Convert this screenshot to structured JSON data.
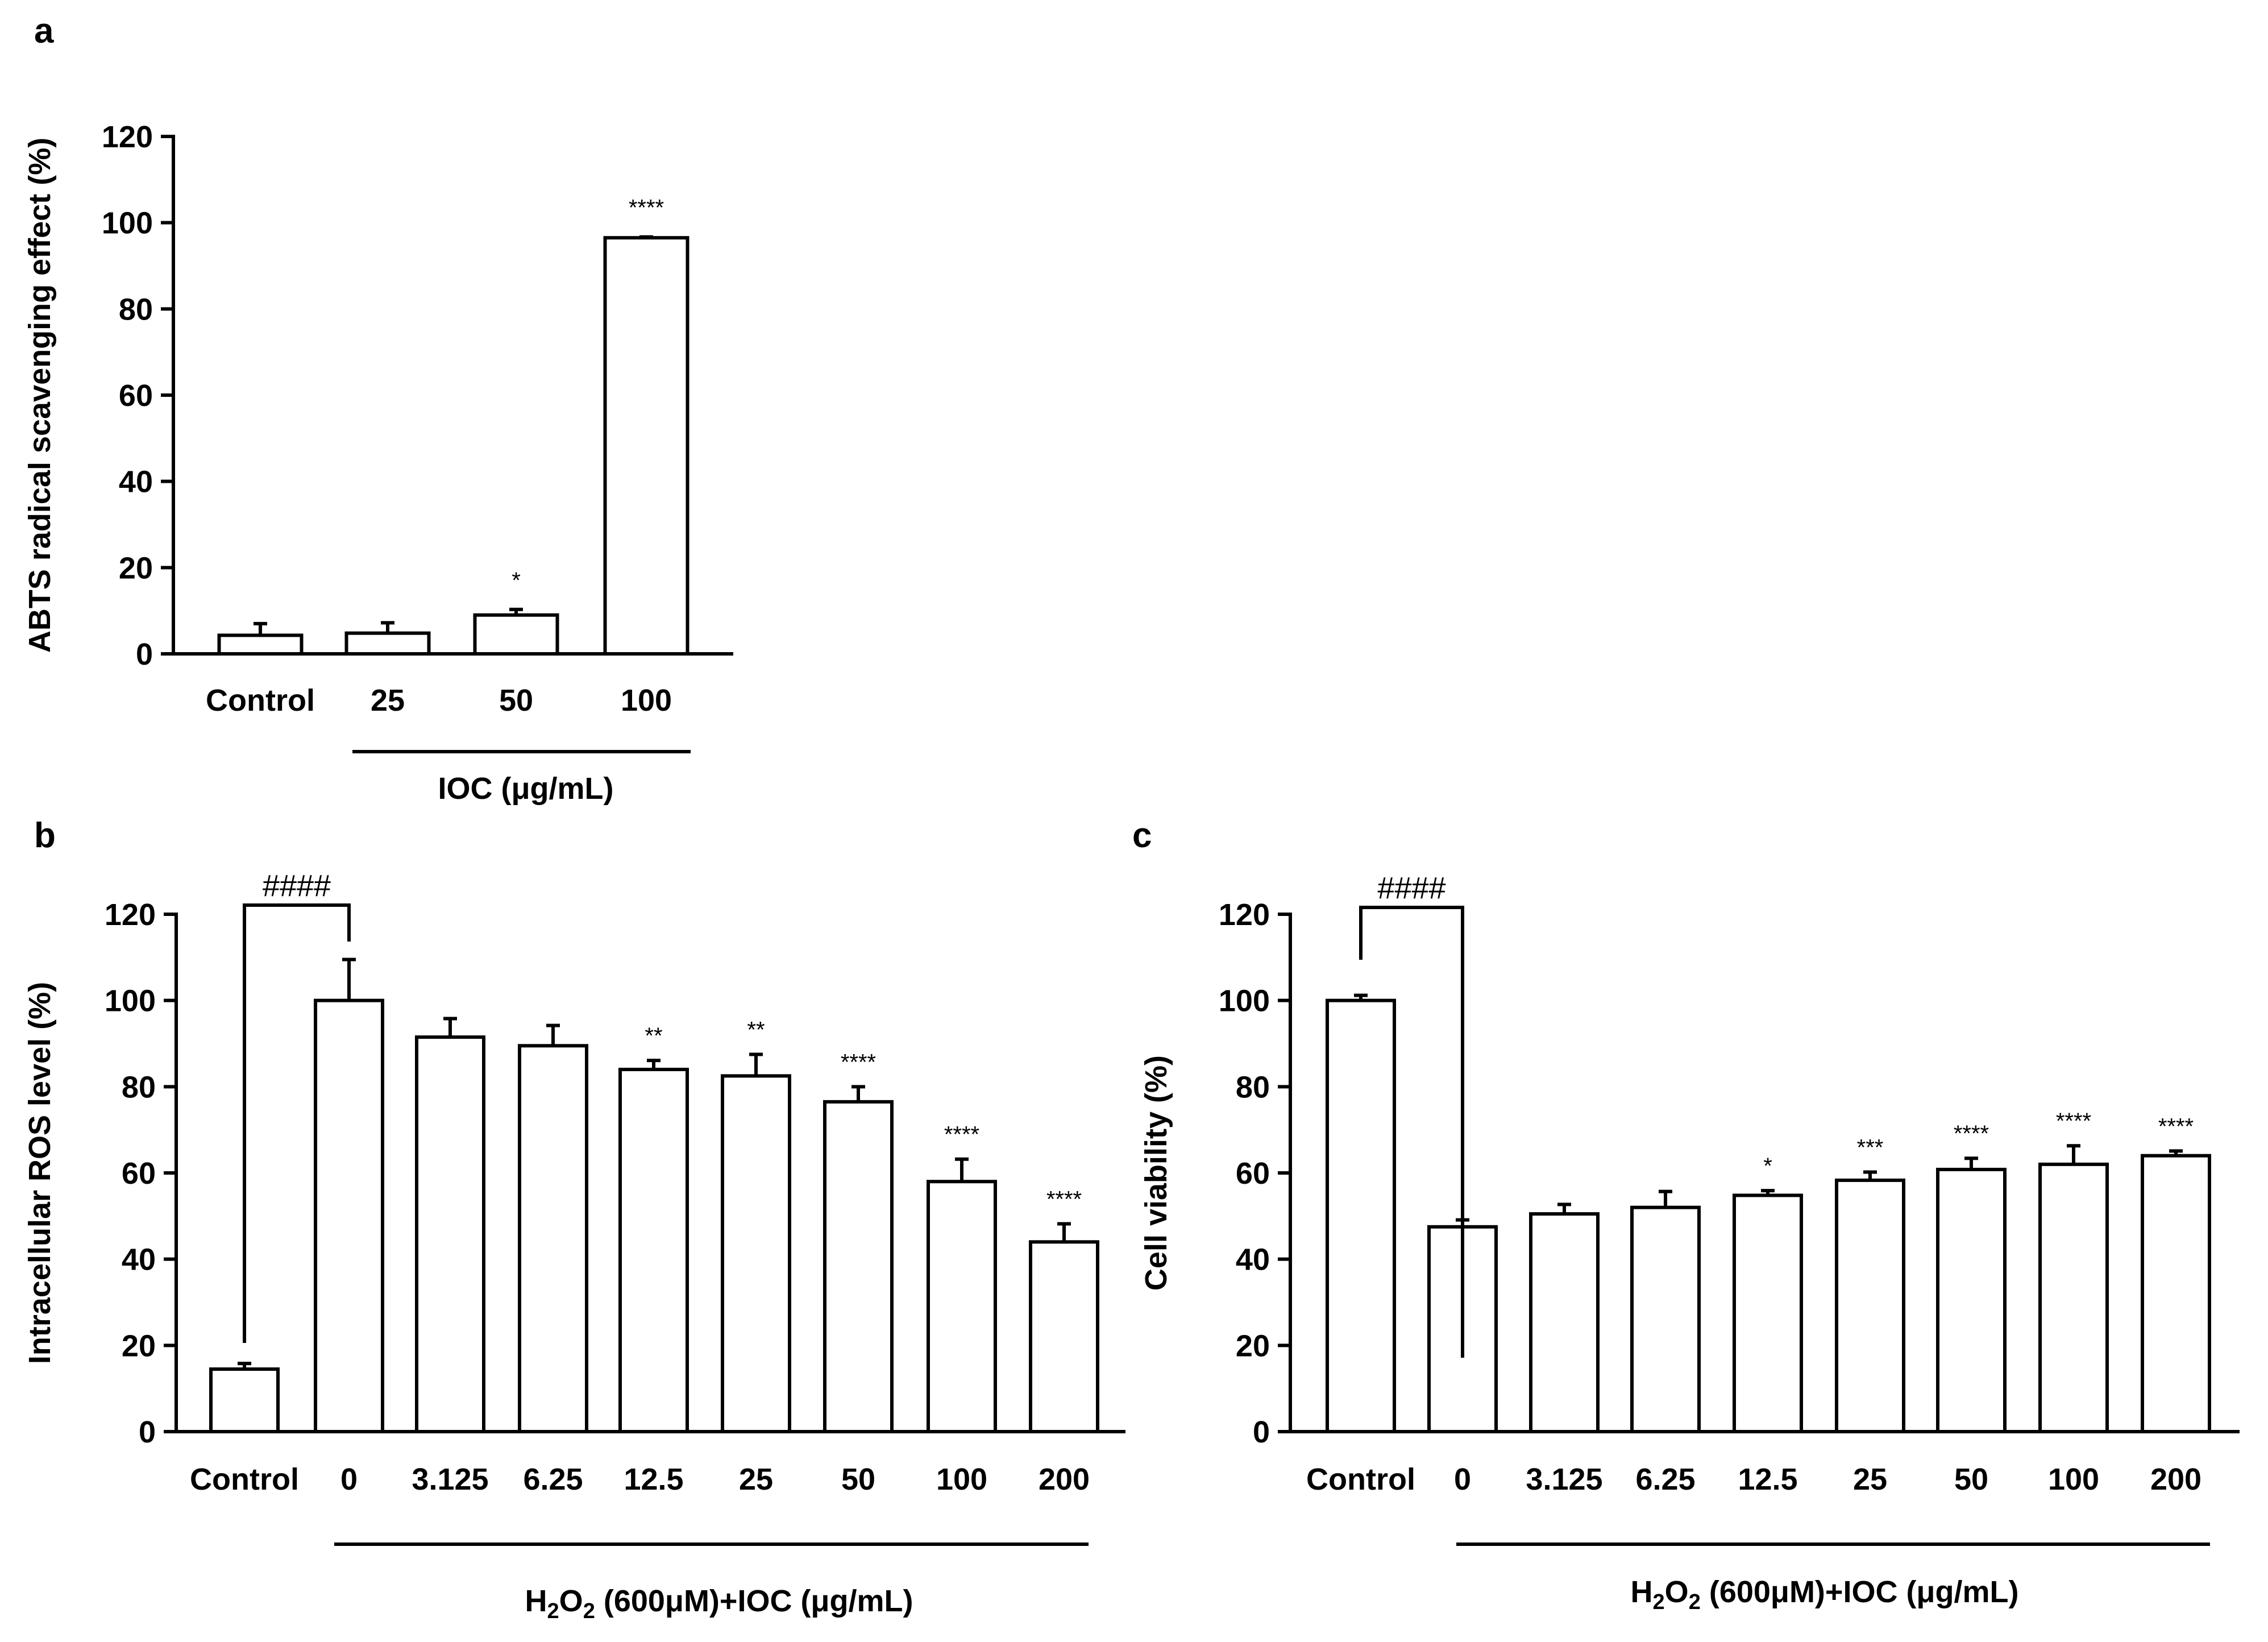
{
  "colors": {
    "axis": "#000000",
    "bar_fill": "#ffffff",
    "bar_stroke": "#000000",
    "background": "#ffffff"
  },
  "chart_data": [
    {
      "id": "a",
      "panel_label": "a",
      "type": "bar",
      "title": "",
      "ylabel": "ABTS radical scavenging effect (%)",
      "ylim": [
        0,
        120
      ],
      "yticks": [
        "0",
        "20",
        "40",
        "60",
        "80",
        "100",
        "120"
      ],
      "categories": [
        "Control",
        "25",
        "50",
        "100"
      ],
      "values": [
        4.3,
        4.8,
        9.0,
        96.5
      ],
      "errors": [
        2.7,
        2.4,
        1.3,
        0.2
      ],
      "significance": [
        "",
        "",
        "*",
        "****"
      ],
      "group_label": "IOC (μg/mL)",
      "grid": false
    },
    {
      "id": "b",
      "panel_label": "b",
      "type": "bar",
      "title": "",
      "ylabel": "Intracellular ROS level (%)",
      "ylim": [
        0,
        120
      ],
      "yticks": [
        "0",
        "20",
        "40",
        "60",
        "80",
        "100",
        "120"
      ],
      "categories": [
        "Control",
        "0",
        "3.125",
        "6.25",
        "12.5",
        "25",
        "50",
        "100",
        "200"
      ],
      "values": [
        14.5,
        100.0,
        91.5,
        89.5,
        84.0,
        82.5,
        76.5,
        58.0,
        44.0
      ],
      "errors": [
        1.3,
        9.5,
        4.3,
        4.7,
        2.1,
        5.0,
        3.5,
        5.2,
        4.2
      ],
      "significance": [
        "",
        "",
        "",
        "",
        "**",
        "**",
        "****",
        "****",
        "****"
      ],
      "comparison": {
        "from": "Control",
        "to": "0",
        "label": "####"
      },
      "group_label": {
        "prefix": "H",
        "sub1": "2",
        "mid": "O",
        "sub2": "2",
        "suffix": " (600μM)+IOC (μg/mL)"
      },
      "grid": false
    },
    {
      "id": "c",
      "panel_label": "c",
      "type": "bar",
      "title": "",
      "ylabel": "Cell viability (%)",
      "ylim": [
        0,
        120
      ],
      "yticks": [
        "0",
        "20",
        "40",
        "60",
        "80",
        "100",
        "120"
      ],
      "categories": [
        "Control",
        "0",
        "3.125",
        "6.25",
        "12.5",
        "25",
        "50",
        "100",
        "200"
      ],
      "values": [
        100.0,
        47.5,
        50.5,
        52.0,
        54.8,
        58.3,
        60.8,
        62.0,
        64.0
      ],
      "errors": [
        1.2,
        1.6,
        2.2,
        3.7,
        1.1,
        1.9,
        2.6,
        4.3,
        1.1
      ],
      "significance": [
        "",
        "",
        "",
        "",
        "*",
        "***",
        "****",
        "****",
        "****"
      ],
      "comparison": {
        "from": "Control",
        "to": "0",
        "label": "####"
      },
      "group_label": {
        "prefix": "H",
        "sub1": "2",
        "mid": "O",
        "sub2": "2",
        "suffix": " (600μM)+IOC (μg/mL)"
      },
      "grid": false
    }
  ]
}
